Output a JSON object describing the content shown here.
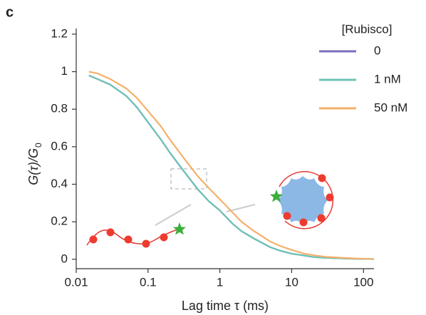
{
  "chart_data": {
    "type": "line",
    "panel_label": "c",
    "xlabel": "Lag time τ (ms)",
    "ylabel": {
      "main": "G(τ)/G",
      "sub": "0"
    },
    "legend_title": "[Rubisco]",
    "xscale": "log",
    "x": [
      0.015,
      0.02,
      0.03,
      0.05,
      0.07,
      0.1,
      0.15,
      0.2,
      0.3,
      0.5,
      0.7,
      1,
      1.5,
      2,
      3,
      5,
      7,
      10,
      15,
      20,
      30,
      50,
      70,
      100,
      140
    ],
    "series": [
      {
        "name": "0",
        "color": "#7b6fc0",
        "values": [
          0.98,
          0.96,
          0.93,
          0.87,
          0.81,
          0.73,
          0.64,
          0.57,
          0.48,
          0.37,
          0.31,
          0.26,
          0.19,
          0.15,
          0.11,
          0.065,
          0.045,
          0.03,
          0.02,
          0.012,
          0.008,
          0.005,
          0.003,
          0.002,
          0.001
        ]
      },
      {
        "name": "1 nM",
        "color": "#6cc3b4",
        "values": [
          0.98,
          0.96,
          0.93,
          0.87,
          0.81,
          0.73,
          0.64,
          0.57,
          0.48,
          0.37,
          0.31,
          0.26,
          0.19,
          0.15,
          0.11,
          0.065,
          0.045,
          0.03,
          0.02,
          0.012,
          0.008,
          0.005,
          0.003,
          0.002,
          0.001
        ]
      },
      {
        "name": "50 nM",
        "color": "#f5b06a",
        "values": [
          1.0,
          0.99,
          0.96,
          0.91,
          0.86,
          0.79,
          0.71,
          0.64,
          0.55,
          0.44,
          0.38,
          0.32,
          0.25,
          0.2,
          0.15,
          0.095,
          0.07,
          0.05,
          0.03,
          0.022,
          0.013,
          0.008,
          0.005,
          0.003,
          0.002
        ]
      }
    ],
    "xlim": [
      0.01,
      140
    ],
    "xticks": [
      0.01,
      0.1,
      1,
      10,
      100
    ],
    "ylim": [
      -0.05,
      1.23
    ],
    "yticks": [
      0,
      0.2,
      0.4,
      0.6,
      0.8,
      1,
      1.2
    ]
  }
}
